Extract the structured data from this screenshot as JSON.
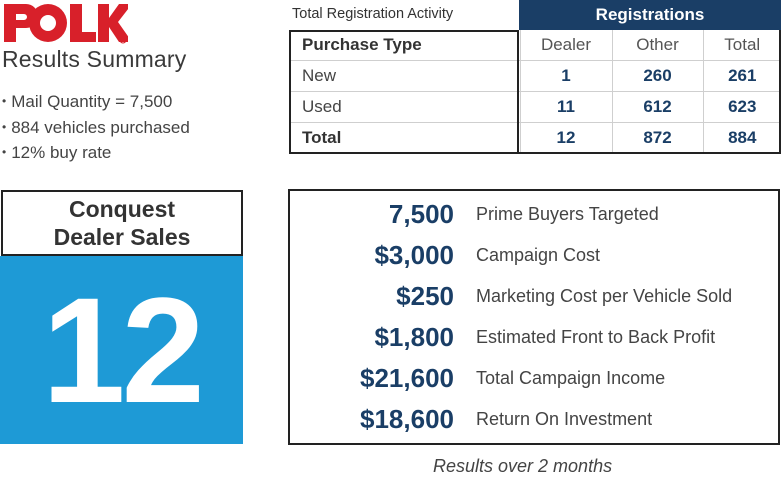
{
  "brand": {
    "logo_text": "POLK",
    "logo_color": "#d8202a"
  },
  "summary": {
    "title": "Results Summary",
    "bullets": [
      "Mail Quantity = 7,500",
      "884 vehicles purchased",
      "12% buy rate"
    ]
  },
  "registration_table": {
    "caption": "Total Registration Activity",
    "group_header": "Registrations",
    "columns": [
      "Purchase Type",
      "Dealer",
      "Other",
      "Total"
    ],
    "rows": [
      {
        "type": "New",
        "dealer": "1",
        "other": "260",
        "total": "261"
      },
      {
        "type": "Used",
        "dealer": "11",
        "other": "612",
        "total": "623"
      },
      {
        "type": "Total",
        "dealer": "12",
        "other": "872",
        "total": "884"
      }
    ]
  },
  "conquest": {
    "line1": "Conquest",
    "line2": "Dealer Sales",
    "value": "12",
    "color": "#1e9ad6"
  },
  "metrics": [
    {
      "value": "7,500",
      "label": "Prime Buyers Targeted"
    },
    {
      "value": "$3,000",
      "label": "Campaign Cost"
    },
    {
      "value": "$250",
      "label": "Marketing Cost per Vehicle Sold"
    },
    {
      "value": "$1,800",
      "label": "Estimated Front to Back Profit"
    },
    {
      "value": "$21,600",
      "label": "Total Campaign Income"
    },
    {
      "value": "$18,600",
      "label": "Return On Investment"
    }
  ],
  "footnote": "Results over 2 months",
  "colors": {
    "navy": "#1a3e66",
    "blue": "#1e9ad6"
  }
}
